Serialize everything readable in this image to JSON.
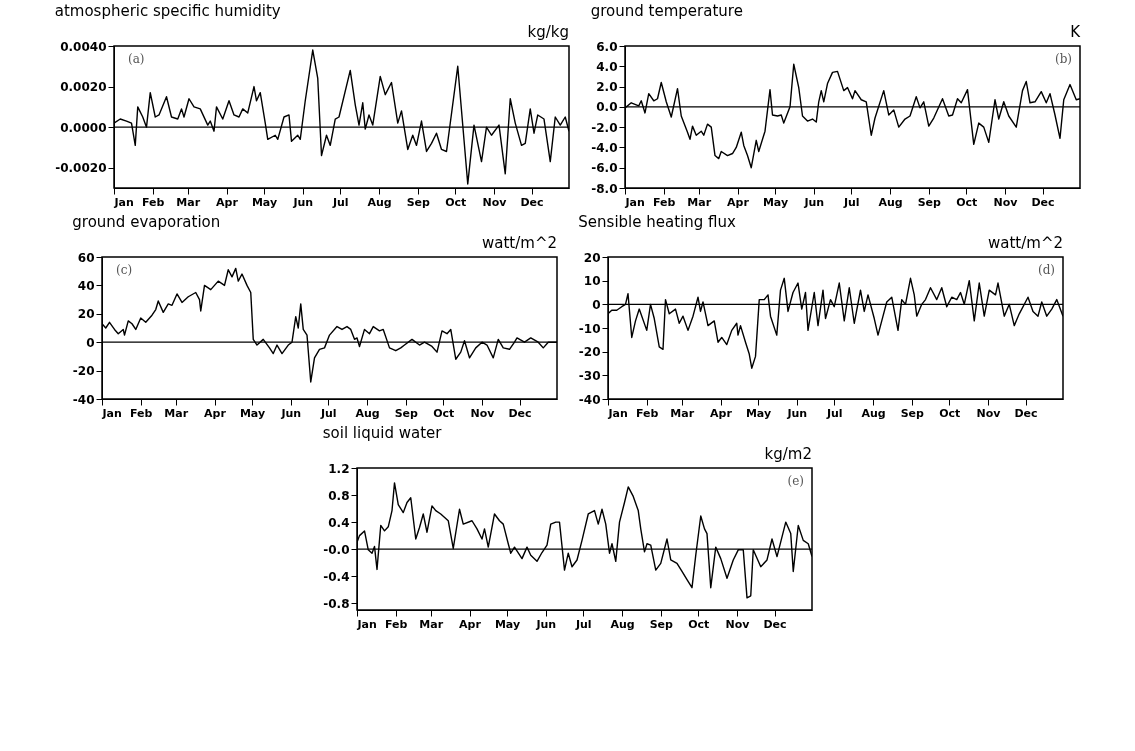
{
  "chart_data": [
    {
      "type": "line",
      "title": "atmospheric specific humidity",
      "ylabel": "kg/kg",
      "annotations": [
        "(a)"
      ],
      "xlim": [
        "--01-01",
        "--12-31"
      ],
      "xticks": [
        {
          "value": "--01-01",
          "label": "Jan"
        },
        {
          "value": "--02-01",
          "label": "Feb"
        },
        {
          "value": "--03-01",
          "label": "Mar"
        },
        {
          "value": "--04-01",
          "label": "Apr"
        },
        {
          "value": "--05-01",
          "label": "May"
        },
        {
          "value": "--06-01",
          "label": "Jun"
        },
        {
          "value": "--07-01",
          "label": "Jul"
        },
        {
          "value": "--08-01",
          "label": "Aug"
        },
        {
          "value": "--09-01",
          "label": "Sep"
        },
        {
          "value": "--10-01",
          "label": "Oct"
        },
        {
          "value": "--11-01",
          "label": "Nov"
        },
        {
          "value": "--12-01",
          "label": "Dec"
        }
      ],
      "ylim": [
        -0.003,
        0.004
      ],
      "yticks": [
        {
          "value": -0.002,
          "label": "-0.0020"
        },
        {
          "value": 0,
          "label": "0.0000"
        },
        {
          "value": 0.002,
          "label": "0.0020"
        },
        {
          "value": 0.004,
          "label": "0.0040"
        }
      ],
      "ref_lines": [
        {
          "axis": "y",
          "value": 0
        }
      ],
      "x": [
        "--01-01",
        "--01-06",
        "--01-11",
        "--01-15",
        "--01-18",
        "--01-20",
        "--01-24",
        "--01-27",
        "--01-30",
        "--02-03",
        "--02-06",
        "--02-12",
        "--02-16",
        "--02-21",
        "--02-24",
        "--02-26",
        "--03-02",
        "--03-06",
        "--03-11",
        "--03-17",
        "--03-19",
        "--03-22",
        "--03-24",
        "--03-29",
        "--04-03",
        "--04-07",
        "--04-11",
        "--04-14",
        "--04-18",
        "--04-23",
        "--04-25",
        "--04-28",
        "--05-02",
        "--05-04",
        "--05-10",
        "--05-12",
        "--05-17",
        "--05-21",
        "--05-23",
        "--05-28",
        "--05-30",
        "--06-03",
        "--06-09",
        "--06-13",
        "--06-16",
        "--06-20",
        "--06-23",
        "--06-27",
        "--06-30",
        "--07-09",
        "--07-13",
        "--07-16",
        "--07-19",
        "--07-21",
        "--07-24",
        "--07-27",
        "--08-02",
        "--08-06",
        "--08-11",
        "--08-16",
        "--08-19",
        "--08-24",
        "--08-28",
        "--08-31",
        "--09-04",
        "--09-08",
        "--09-12",
        "--09-16",
        "--09-20",
        "--09-24",
        "--10-03",
        "--10-11",
        "--10-16",
        "--10-22",
        "--10-26",
        "--10-30",
        "--11-05",
        "--11-10",
        "--11-14",
        "--11-18",
        "--11-23",
        "--11-26",
        "--11-30",
        "--12-03",
        "--12-06",
        "--12-11",
        "--12-16",
        "--12-20",
        "--12-24",
        "--12-28",
        "--12-31"
      ],
      "series": [
        {
          "color": "#000000",
          "values": [
            0.0002,
            0.0004,
            0.0003,
            0.0002,
            -0.0009,
            0.001,
            0.0005,
            0.0,
            0.0017,
            0.0005,
            0.0006,
            0.0015,
            0.0005,
            0.0004,
            0.0009,
            0.0005,
            0.0014,
            0.001,
            0.0009,
            0.0001,
            0.0003,
            -0.0002,
            0.001,
            0.0004,
            0.0013,
            0.0006,
            0.0005,
            0.0009,
            0.0007,
            0.002,
            0.0013,
            0.0017,
            0.0002,
            -0.0006,
            -0.0004,
            -0.0006,
            0.0005,
            0.0006,
            -0.0007,
            -0.0004,
            -0.0006,
            0.0013,
            0.0038,
            0.0024,
            -0.0014,
            -0.0004,
            -0.0009,
            0.0004,
            0.0005,
            0.0028,
            0.0011,
            0.0001,
            0.0012,
            -0.0001,
            0.0006,
            0.0001,
            0.0025,
            0.0016,
            0.0022,
            0.0002,
            0.0008,
            -0.0011,
            -0.0004,
            -0.0009,
            0.0003,
            -0.0012,
            -0.0008,
            -0.0003,
            -0.0011,
            -0.0012,
            0.003,
            -0.0028,
            0.0001,
            -0.0017,
            0.0,
            -0.0004,
            0.0001,
            -0.0023,
            0.0014,
            0.0002,
            -0.0009,
            -0.0008,
            0.0009,
            -0.0003,
            0.0006,
            0.0004,
            -0.0017,
            0.0005,
            0.0001,
            0.0005,
            -0.0002
          ]
        }
      ]
    },
    {
      "type": "line",
      "title": "ground temperature",
      "ylabel": "K",
      "annotations": [
        "(b)"
      ],
      "xlim": [
        "--01-01",
        "--12-31"
      ],
      "xticks": [
        {
          "value": "--01-01",
          "label": "Jan"
        },
        {
          "value": "--02-01",
          "label": "Feb"
        },
        {
          "value": "--03-01",
          "label": "Mar"
        },
        {
          "value": "--04-01",
          "label": "Apr"
        },
        {
          "value": "--05-01",
          "label": "May"
        },
        {
          "value": "--06-01",
          "label": "Jun"
        },
        {
          "value": "--07-01",
          "label": "Jul"
        },
        {
          "value": "--08-01",
          "label": "Aug"
        },
        {
          "value": "--09-01",
          "label": "Sep"
        },
        {
          "value": "--10-01",
          "label": "Oct"
        },
        {
          "value": "--11-01",
          "label": "Nov"
        },
        {
          "value": "--12-01",
          "label": "Dec"
        }
      ],
      "ylim": [
        -8,
        6
      ],
      "yticks": [
        {
          "value": -8,
          "label": "-8.0"
        },
        {
          "value": -6,
          "label": "-6.0"
        },
        {
          "value": -4,
          "label": "-4.0"
        },
        {
          "value": -2,
          "label": "-2.0"
        },
        {
          "value": 0,
          "label": "0.0"
        },
        {
          "value": 2,
          "label": "2.0"
        },
        {
          "value": 4,
          "label": "4.0"
        },
        {
          "value": 6,
          "label": "6.0"
        }
      ],
      "ref_lines": [
        {
          "axis": "y",
          "value": 0
        }
      ],
      "x": [
        "--01-01",
        "--01-06",
        "--01-12",
        "--01-14",
        "--01-17",
        "--01-20",
        "--01-24",
        "--01-27",
        "--01-30",
        "--02-03",
        "--02-07",
        "--02-12",
        "--02-15",
        "--02-20",
        "--02-22",
        "--02-24",
        "--02-27",
        "--03-03",
        "--03-05",
        "--03-08",
        "--03-11",
        "--03-14",
        "--03-17",
        "--03-19",
        "--03-24",
        "--03-28",
        "--03-31",
        "--04-04",
        "--04-06",
        "--04-09",
        "--04-12",
        "--04-16",
        "--04-18",
        "--04-23",
        "--04-27",
        "--04-29",
        "--05-03",
        "--05-06",
        "--05-08",
        "--05-13",
        "--05-16",
        "--05-20",
        "--05-23",
        "--05-27",
        "--05-31",
        "--06-03",
        "--06-05",
        "--06-07",
        "--06-09",
        "--06-12",
        "--06-16",
        "--06-20",
        "--06-25",
        "--06-28",
        "--07-02",
        "--07-04",
        "--07-09",
        "--07-13",
        "--07-17",
        "--07-20",
        "--07-27",
        "--07-31",
        "--08-04",
        "--08-08",
        "--08-13",
        "--08-17",
        "--08-22",
        "--08-25",
        "--08-28",
        "--09-01",
        "--09-05",
        "--09-12",
        "--09-17",
        "--09-20",
        "--09-24",
        "--09-27",
        "--10-02",
        "--10-07",
        "--10-11",
        "--10-15",
        "--10-19",
        "--10-24",
        "--10-27",
        "--10-31",
        "--11-04",
        "--11-10",
        "--11-15",
        "--11-18",
        "--11-21",
        "--11-25",
        "--11-30",
        "--12-04",
        "--12-07",
        "--12-11",
        "--12-15",
        "--12-18",
        "--12-23",
        "--12-28",
        "--12-31"
      ],
      "series": [
        {
          "color": "#000000",
          "values": [
            -0.1,
            0.4,
            0.1,
            0.6,
            -0.6,
            1.3,
            0.6,
            0.8,
            2.4,
            0.5,
            -1.0,
            1.8,
            -0.9,
            -2.5,
            -3.2,
            -1.9,
            -2.8,
            -2.4,
            -2.8,
            -1.7,
            -2.0,
            -4.8,
            -5.1,
            -4.4,
            -4.8,
            -4.6,
            -4.0,
            -2.5,
            -3.8,
            -4.8,
            -6.0,
            -3.3,
            -4.4,
            -2.4,
            1.7,
            -0.8,
            -0.9,
            -0.8,
            -1.6,
            0.0,
            4.2,
            1.9,
            -0.9,
            -1.4,
            -1.2,
            -1.5,
            0.5,
            1.6,
            0.5,
            2.3,
            3.4,
            3.5,
            1.6,
            1.9,
            0.8,
            1.6,
            0.7,
            0.5,
            -2.8,
            -1.1,
            1.6,
            -0.8,
            -0.3,
            -2.0,
            -1.2,
            -0.9,
            1.0,
            -0.1,
            0.5,
            -1.9,
            -1.1,
            0.8,
            -0.9,
            -0.8,
            0.8,
            0.4,
            1.7,
            -3.7,
            -1.6,
            -2.0,
            -3.5,
            0.7,
            -1.2,
            0.5,
            -0.9,
            -2.0,
            1.6,
            2.5,
            0.4,
            0.5,
            1.5,
            0.4,
            1.3,
            -0.8,
            -3.1,
            0.7,
            2.2,
            0.7,
            0.8
          ]
        }
      ]
    },
    {
      "type": "line",
      "title": "ground evaporation",
      "ylabel": "watt/m^2",
      "annotations": [
        "(c)"
      ],
      "xlim": [
        "--01-01",
        "--12-31"
      ],
      "xticks": [
        {
          "value": "--01-01",
          "label": "Jan"
        },
        {
          "value": "--02-01",
          "label": "Feb"
        },
        {
          "value": "--03-01",
          "label": "Mar"
        },
        {
          "value": "--04-01",
          "label": "Apr"
        },
        {
          "value": "--05-01",
          "label": "May"
        },
        {
          "value": "--06-01",
          "label": "Jun"
        },
        {
          "value": "--07-01",
          "label": "Jul"
        },
        {
          "value": "--08-01",
          "label": "Aug"
        },
        {
          "value": "--09-01",
          "label": "Sep"
        },
        {
          "value": "--10-01",
          "label": "Oct"
        },
        {
          "value": "--11-01",
          "label": "Nov"
        },
        {
          "value": "--12-01",
          "label": "Dec"
        }
      ],
      "ylim": [
        -40,
        60
      ],
      "yticks": [
        -40,
        -20,
        0,
        20,
        40,
        60
      ],
      "ref_lines": [
        {
          "axis": "y",
          "value": 0
        }
      ],
      "x": [
        "--01-01",
        "--01-04",
        "--01-07",
        "--01-11",
        "--01-14",
        "--01-18",
        "--01-19",
        "--01-22",
        "--01-25",
        "--01-28",
        "--02-01",
        "--02-05",
        "--02-10",
        "--02-13",
        "--02-15",
        "--02-19",
        "--02-23",
        "--02-26",
        "--03-02",
        "--03-06",
        "--03-11",
        "--03-17",
        "--03-20",
        "--03-21",
        "--03-24",
        "--03-29",
        "--04-04",
        "--04-09",
        "--04-12",
        "--04-15",
        "--04-18",
        "--04-20",
        "--04-23",
        "--04-27",
        "--04-30",
        "--05-02",
        "--05-05",
        "--05-10",
        "--05-15",
        "--05-18",
        "--05-21",
        "--05-25",
        "--05-30",
        "--06-02",
        "--06-05",
        "--06-07",
        "--06-09",
        "--06-11",
        "--06-14",
        "--06-17",
        "--06-20",
        "--06-24",
        "--06-28",
        "--07-02",
        "--07-08",
        "--07-12",
        "--07-16",
        "--07-19",
        "--07-22",
        "--07-24",
        "--07-26",
        "--07-30",
        "--08-03",
        "--08-06",
        "--08-11",
        "--08-14",
        "--08-19",
        "--08-24",
        "--08-28",
        "--08-31",
        "--09-06",
        "--09-12",
        "--09-16",
        "--09-22",
        "--09-26",
        "--09-30",
        "--10-04",
        "--10-07",
        "--10-11",
        "--10-15",
        "--10-18",
        "--10-22",
        "--10-27",
        "--11-01",
        "--11-05",
        "--11-10",
        "--11-14",
        "--11-18",
        "--11-23",
        "--11-27",
        "--11-29",
        "--12-05",
        "--12-10",
        "--12-16",
        "--12-20",
        "--12-24",
        "--12-31"
      ],
      "series": [
        {
          "color": "#000000",
          "values": [
            13,
            10,
            14,
            9,
            6,
            9,
            5,
            15,
            13,
            9,
            17,
            14,
            19,
            23,
            29,
            21,
            27,
            26,
            34,
            28,
            32,
            35,
            30,
            22,
            40,
            37,
            43,
            40,
            51,
            46,
            52,
            43,
            48,
            40,
            35,
            2,
            -2,
            2,
            -4,
            -8,
            -2,
            -8,
            -2,
            0,
            18,
            10,
            27,
            9,
            5,
            -28,
            -11,
            -5,
            -4,
            5,
            11,
            9,
            11,
            9,
            2,
            3,
            -3,
            9,
            6,
            11,
            8,
            9,
            -4,
            -6,
            -4,
            -2,
            2,
            -2,
            0,
            -3,
            -7,
            8,
            6,
            9,
            -12,
            -7,
            1,
            -11,
            -4,
            0,
            -2,
            -11,
            2,
            -4,
            -5,
            0,
            3,
            0,
            3,
            0,
            -4,
            0,
            0
          ]
        }
      ]
    },
    {
      "type": "line",
      "title": "Sensible heating flux",
      "ylabel": "watt/m^2",
      "annotations": [
        "(d)"
      ],
      "xlim": [
        "--01-01",
        "--12-31"
      ],
      "xticks": [
        {
          "value": "--01-01",
          "label": "Jan"
        },
        {
          "value": "--02-01",
          "label": "Feb"
        },
        {
          "value": "--03-01",
          "label": "Mar"
        },
        {
          "value": "--04-01",
          "label": "Apr"
        },
        {
          "value": "--05-01",
          "label": "May"
        },
        {
          "value": "--06-01",
          "label": "Jun"
        },
        {
          "value": "--07-01",
          "label": "Jul"
        },
        {
          "value": "--08-01",
          "label": "Aug"
        },
        {
          "value": "--09-01",
          "label": "Sep"
        },
        {
          "value": "--10-01",
          "label": "Oct"
        },
        {
          "value": "--11-01",
          "label": "Nov"
        },
        {
          "value": "--12-01",
          "label": "Dec"
        }
      ],
      "ylim": [
        -40,
        20
      ],
      "yticks": [
        -40,
        -30,
        -20,
        -10,
        0,
        10,
        20
      ],
      "ref_lines": [
        {
          "axis": "y",
          "value": 0
        }
      ],
      "x": [
        "--01-01",
        "--01-04",
        "--01-08",
        "--01-12",
        "--01-15",
        "--01-17",
        "--01-20",
        "--01-23",
        "--01-26",
        "--02-01",
        "--02-04",
        "--02-07",
        "--02-11",
        "--02-14",
        "--02-16",
        "--02-19",
        "--02-24",
        "--02-27",
        "--03-02",
        "--03-06",
        "--03-10",
        "--03-14",
        "--03-16",
        "--03-18",
        "--03-22",
        "--03-27",
        "--03-30",
        "--04-02",
        "--04-06",
        "--04-10",
        "--04-14",
        "--04-15",
        "--04-17",
        "--04-21",
        "--04-24",
        "--04-26",
        "--04-29",
        "--05-02",
        "--05-06",
        "--05-09",
        "--05-11",
        "--05-16",
        "--05-19",
        "--05-22",
        "--05-25",
        "--05-29",
        "--06-02",
        "--06-05",
        "--06-08",
        "--06-10",
        "--06-15",
        "--06-18",
        "--06-22",
        "--06-24",
        "--06-28",
        "--07-01",
        "--07-05",
        "--07-09",
        "--07-13",
        "--07-17",
        "--07-22",
        "--07-25",
        "--07-28",
        "--08-02",
        "--08-05",
        "--08-09",
        "--08-12",
        "--08-16",
        "--08-21",
        "--08-24",
        "--08-27",
        "--08-31",
        "--09-03",
        "--09-05",
        "--09-09",
        "--09-12",
        "--09-16",
        "--09-21",
        "--09-25",
        "--09-29",
        "--10-03",
        "--10-07",
        "--10-10",
        "--10-13",
        "--10-17",
        "--10-21",
        "--10-25",
        "--10-29",
        "--11-02",
        "--11-07",
        "--11-09",
        "--11-14",
        "--11-18",
        "--11-22",
        "--11-26",
        "--12-03",
        "--12-07",
        "--12-11",
        "--12-14",
        "--12-18",
        "--12-22",
        "--12-26",
        "--12-31"
      ],
      "series": [
        {
          "color": "#000000",
          "values": [
            -4,
            -2.5,
            -2.5,
            -1,
            0,
            4.5,
            -14,
            -7,
            -2,
            -11,
            0,
            -6,
            -18,
            -19,
            2,
            -4,
            -2,
            -8,
            -5,
            -11,
            -5,
            3,
            -3,
            1,
            -9,
            -7,
            -16,
            -14,
            -17,
            -11,
            -8,
            -13,
            -9,
            -16,
            -21,
            -27,
            -22,
            2,
            2,
            4,
            -5,
            -13,
            6,
            11,
            -3,
            5,
            9,
            -2,
            5,
            -11,
            5,
            -9,
            6,
            -6,
            2,
            -1,
            9,
            -7,
            7,
            -8,
            6,
            -3,
            4,
            -6,
            -13,
            -5,
            1,
            3,
            -11,
            2,
            0,
            11,
            4,
            -5,
            0,
            2,
            7,
            2,
            7,
            -1,
            3,
            2,
            5,
            0,
            10,
            -7,
            9,
            -5,
            6,
            4,
            9,
            -5,
            0,
            -9,
            -4,
            3,
            -3,
            -5,
            1,
            -5,
            -2,
            2,
            -5
          ]
        }
      ]
    },
    {
      "type": "line",
      "title": "soil liquid water",
      "ylabel": "kg/m2",
      "annotations": [
        "(e)"
      ],
      "xlim": [
        "--01-01",
        "--12-31"
      ],
      "xticks": [
        {
          "value": "--01-01",
          "label": "Jan"
        },
        {
          "value": "--02-01",
          "label": "Feb"
        },
        {
          "value": "--03-01",
          "label": "Mar"
        },
        {
          "value": "--04-01",
          "label": "Apr"
        },
        {
          "value": "--05-01",
          "label": "May"
        },
        {
          "value": "--06-01",
          "label": "Jun"
        },
        {
          "value": "--07-01",
          "label": "Jul"
        },
        {
          "value": "--08-01",
          "label": "Aug"
        },
        {
          "value": "--09-01",
          "label": "Sep"
        },
        {
          "value": "--10-01",
          "label": "Oct"
        },
        {
          "value": "--11-01",
          "label": "Nov"
        },
        {
          "value": "--12-01",
          "label": "Dec"
        }
      ],
      "ylim": [
        -0.9,
        1.2
      ],
      "yticks": [
        {
          "value": -0.8,
          "label": "-0.8"
        },
        {
          "value": -0.4,
          "label": "-0.4"
        },
        {
          "value": 0,
          "label": "-0.0"
        },
        {
          "value": 0.4,
          "label": "0.4"
        },
        {
          "value": 0.8,
          "label": "0.8"
        },
        {
          "value": 1.2,
          "label": "1.2"
        }
      ],
      "ref_lines": [
        {
          "axis": "y",
          "value": 0
        }
      ],
      "x": [
        "--01-01",
        "--01-03",
        "--01-07",
        "--01-10",
        "--01-13",
        "--01-15",
        "--01-17",
        "--01-20",
        "--01-23",
        "--01-26",
        "--01-29",
        "--01-31",
        "--02-03",
        "--02-07",
        "--02-10",
        "--02-13",
        "--02-17",
        "--02-20",
        "--02-23",
        "--02-26",
        "--03-02",
        "--03-05",
        "--03-09",
        "--03-15",
        "--03-19",
        "--03-24",
        "--03-27",
        "--04-03",
        "--04-07",
        "--04-11",
        "--04-13",
        "--04-16",
        "--04-21",
        "--04-25",
        "--04-28",
        "--05-02",
        "--05-04",
        "--05-07",
        "--05-13",
        "--05-17",
        "--05-20",
        "--05-25",
        "--05-29",
        "--06-02",
        "--06-05",
        "--06-09",
        "--06-12",
        "--06-16",
        "--06-19",
        "--06-22",
        "--06-26",
        "--06-30",
        "--07-05",
        "--07-10",
        "--07-13",
        "--07-16",
        "--07-19",
        "--07-22",
        "--07-24",
        "--07-27",
        "--07-30",
        "--08-03",
        "--08-06",
        "--08-10",
        "--08-14",
        "--08-16",
        "--08-19",
        "--08-21",
        "--08-24",
        "--08-28",
        "--09-01",
        "--09-06",
        "--09-09",
        "--09-14",
        "--09-18",
        "--09-22",
        "--09-26",
        "--09-29",
        "--10-03",
        "--10-06",
        "--10-08",
        "--10-11",
        "--10-15",
        "--10-19",
        "--10-24",
        "--10-29",
        "--11-02",
        "--11-06",
        "--11-09",
        "--11-12",
        "--11-14",
        "--11-20",
        "--11-25",
        "--11-29",
        "--12-03",
        "--12-10",
        "--12-14",
        "--12-16",
        "--12-20",
        "--12-24",
        "--12-28",
        "--12-31"
      ],
      "series": [
        {
          "color": "#000000",
          "values": [
            0.1,
            0.2,
            0.27,
            -0.01,
            -0.06,
            0.04,
            -0.3,
            0.35,
            0.27,
            0.33,
            0.57,
            0.98,
            0.66,
            0.54,
            0.69,
            0.76,
            0.15,
            0.32,
            0.52,
            0.25,
            0.64,
            0.57,
            0.52,
            0.42,
            0.01,
            0.59,
            0.37,
            0.42,
            0.3,
            0.15,
            0.3,
            0.03,
            0.52,
            0.42,
            0.37,
            0.08,
            -0.06,
            0.03,
            -0.14,
            0.03,
            -0.09,
            -0.18,
            -0.05,
            0.06,
            0.37,
            0.4,
            0.4,
            -0.31,
            -0.06,
            -0.26,
            -0.16,
            0.13,
            0.52,
            0.57,
            0.37,
            0.59,
            0.37,
            -0.06,
            0.08,
            -0.18,
            0.4,
            0.69,
            0.92,
            0.78,
            0.57,
            0.3,
            -0.04,
            0.08,
            0.06,
            -0.31,
            -0.21,
            0.15,
            -0.16,
            -0.21,
            -0.33,
            -0.45,
            -0.57,
            -0.09,
            0.49,
            0.3,
            0.23,
            -0.57,
            0.03,
            -0.14,
            -0.43,
            -0.16,
            -0.01,
            -0.01,
            -0.72,
            -0.69,
            -0.01,
            -0.26,
            -0.16,
            0.15,
            -0.11,
            0.4,
            0.23,
            -0.33,
            0.35,
            0.13,
            0.08,
            -0.11
          ]
        }
      ]
    }
  ]
}
